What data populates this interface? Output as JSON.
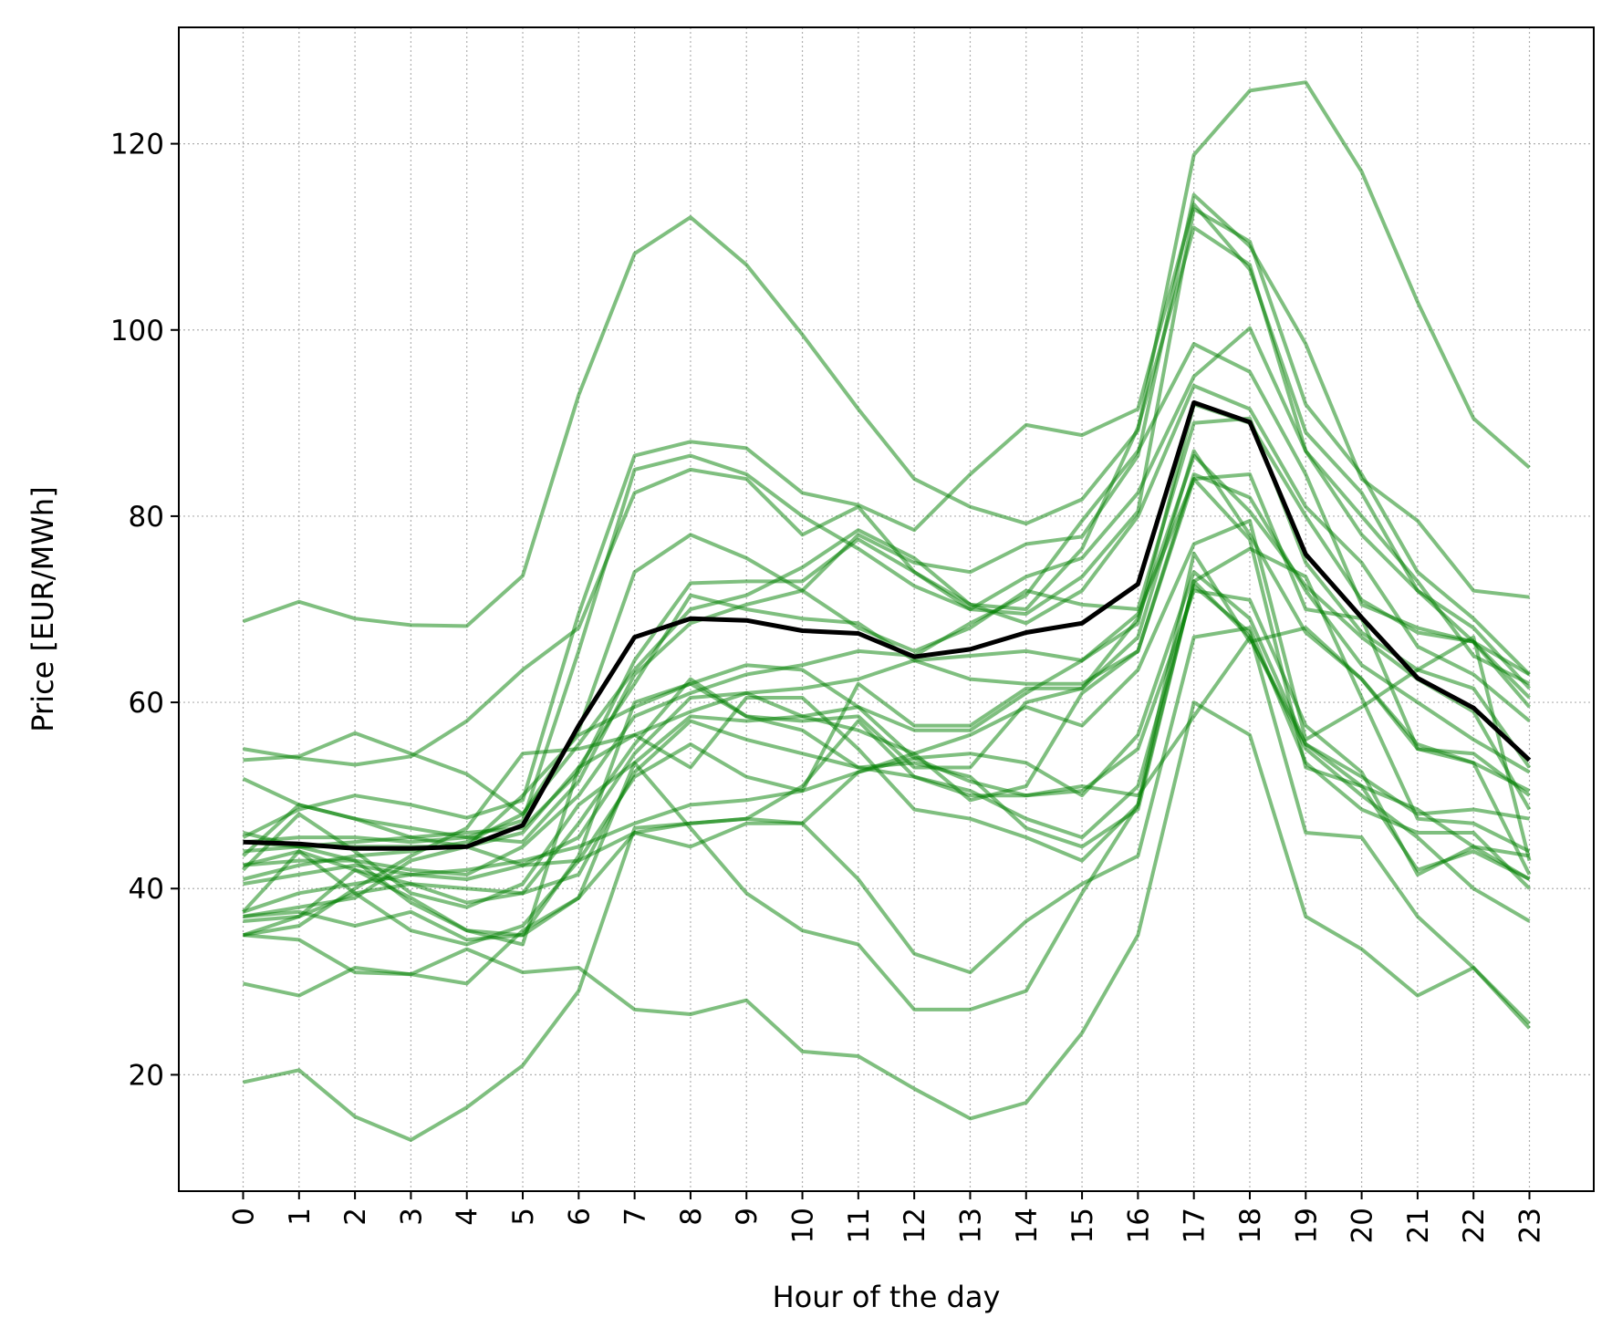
{
  "chart_data": {
    "type": "line",
    "title": "",
    "xlabel": "Hour of the day",
    "ylabel": "Price [EUR/MWh]",
    "x": [
      0,
      1,
      2,
      3,
      4,
      5,
      6,
      7,
      8,
      9,
      10,
      11,
      12,
      13,
      14,
      15,
      16,
      17,
      18,
      19,
      20,
      21,
      22,
      23
    ],
    "xlim": [
      -1.15,
      24.15
    ],
    "ylim": [
      7.5,
      132.5
    ],
    "yticks": [
      20,
      40,
      60,
      80,
      100,
      120
    ],
    "grid": true,
    "legend": false,
    "colors": {
      "series": "#008000",
      "mean": "#000000",
      "grid": "#b0b0b0"
    },
    "series": [
      {
        "values": [
          68.7,
          70.8,
          69.0,
          68.3,
          68.2,
          73.6,
          93.0,
          108.2,
          112.1,
          107.0,
          99.5,
          91.5,
          84.0,
          81.0,
          79.2,
          81.8,
          89.2,
          118.8,
          125.7,
          126.6,
          117.0,
          103.0,
          90.5,
          85.2
        ]
      },
      {
        "values": [
          45.5,
          48.5,
          50.0,
          49.0,
          47.6,
          49.5,
          69.5,
          86.5,
          88.0,
          87.3,
          82.5,
          81.2,
          78.5,
          84.5,
          89.8,
          88.7,
          91.5,
          113.5,
          106.5,
          89.0,
          82.5,
          72.0,
          66.5,
          60.5
        ]
      },
      {
        "values": [
          53.8,
          54.2,
          56.7,
          54.5,
          52.3,
          48.0,
          57.0,
          74.0,
          78.0,
          75.5,
          72.0,
          78.0,
          75.0,
          74.0,
          77.0,
          77.8,
          86.5,
          114.5,
          109.0,
          98.5,
          84.0,
          79.5,
          72.0,
          71.3
        ]
      },
      {
        "values": [
          51.8,
          49.0,
          47.5,
          46.5,
          45.5,
          47.3,
          65.5,
          85.0,
          86.5,
          84.5,
          80.0,
          76.5,
          72.5,
          70.0,
          69.5,
          73.5,
          80.5,
          113.0,
          109.5,
          92.0,
          84.5,
          74.0,
          69.0,
          63.0
        ]
      },
      {
        "values": [
          55.0,
          54.0,
          53.3,
          54.2,
          58.0,
          63.5,
          68.0,
          82.5,
          85.0,
          84.0,
          78.0,
          81.0,
          74.0,
          70.5,
          70.0,
          76.5,
          89.5,
          111.0,
          107.0,
          87.0,
          80.0,
          73.0,
          65.0,
          62.0
        ]
      },
      {
        "values": [
          42.5,
          43.0,
          43.0,
          42.0,
          41.5,
          44.5,
          50.0,
          58.5,
          61.0,
          63.0,
          64.0,
          65.5,
          65.0,
          68.5,
          71.5,
          79.5,
          87.0,
          98.5,
          95.5,
          84.5,
          70.5,
          68.0,
          66.5,
          63.0
        ]
      },
      {
        "values": [
          44.0,
          44.5,
          45.0,
          45.5,
          46.0,
          46.5,
          52.5,
          64.5,
          72.8,
          73.0,
          73.0,
          77.5,
          74.0,
          70.0,
          73.5,
          75.5,
          82.5,
          95.0,
          100.2,
          87.0,
          78.0,
          72.0,
          68.0,
          61.5
        ]
      },
      {
        "values": [
          41.0,
          42.5,
          43.5,
          44.0,
          45.0,
          48.0,
          55.5,
          63.5,
          70.0,
          71.5,
          74.5,
          78.5,
          75.5,
          70.5,
          68.5,
          72.0,
          80.0,
          94.0,
          91.5,
          81.0,
          75.0,
          66.0,
          63.0,
          58.0
        ]
      },
      {
        "values": [
          45.0,
          45.5,
          45.5,
          45.0,
          45.5,
          45.0,
          51.5,
          63.0,
          68.5,
          70.5,
          72.0,
          68.0,
          65.5,
          68.0,
          72.0,
          70.5,
          70.0,
          90.0,
          90.5,
          75.0,
          67.5,
          63.5,
          61.5,
          53.0
        ]
      },
      {
        "values": [
          45.0,
          44.5,
          44.5,
          44.5,
          44.5,
          46.0,
          53.0,
          62.0,
          71.5,
          70.0,
          69.0,
          68.5,
          64.5,
          65.0,
          65.5,
          64.5,
          68.5,
          92.0,
          90.0,
          80.0,
          71.0,
          67.5,
          66.5,
          59.5
        ]
      },
      {
        "values": [
          37.0,
          38.0,
          39.0,
          43.0,
          44.5,
          50.0,
          56.5,
          59.5,
          62.0,
          64.0,
          63.5,
          59.5,
          57.0,
          57.0,
          61.0,
          64.5,
          69.5,
          84.0,
          84.5,
          70.0,
          69.0,
          55.0,
          53.5,
          50.5
        ]
      },
      {
        "values": [
          35.0,
          36.0,
          40.0,
          43.5,
          46.5,
          54.5,
          55.0,
          56.5,
          59.0,
          61.0,
          61.5,
          62.5,
          64.5,
          62.5,
          62.0,
          62.0,
          65.5,
          84.5,
          82.0,
          72.0,
          64.0,
          60.0,
          56.0,
          52.5
        ]
      },
      {
        "values": [
          42.5,
          44.0,
          42.0,
          40.5,
          38.5,
          39.5,
          47.0,
          55.5,
          62.5,
          58.5,
          58.0,
          58.5,
          53.0,
          53.0,
          60.0,
          61.5,
          67.0,
          87.0,
          78.0,
          67.5,
          62.5,
          55.0,
          54.5,
          50.0
        ]
      },
      {
        "values": [
          37.5,
          39.5,
          40.5,
          41.5,
          42.0,
          43.0,
          44.5,
          47.0,
          49.0,
          49.5,
          50.5,
          62.0,
          57.5,
          57.5,
          61.5,
          61.5,
          69.0,
          86.5,
          80.5,
          72.5,
          67.0,
          62.5,
          59.0,
          48.5
        ]
      },
      {
        "values": [
          40.5,
          41.5,
          42.5,
          41.5,
          41.0,
          42.5,
          45.5,
          54.5,
          60.5,
          61.0,
          58.5,
          57.0,
          54.5,
          56.5,
          59.5,
          57.5,
          63.5,
          77.0,
          79.5,
          56.0,
          59.5,
          63.5,
          67.0,
          43.0
        ]
      },
      {
        "values": [
          43.5,
          49.0,
          47.5,
          45.5,
          44.5,
          42.5,
          43.0,
          46.0,
          47.0,
          47.5,
          47.0,
          52.5,
          54.0,
          54.5,
          53.5,
          50.0,
          56.5,
          74.0,
          69.0,
          55.5,
          52.0,
          48.0,
          48.5,
          47.5
        ]
      },
      {
        "values": [
          35.0,
          37.0,
          39.5,
          40.5,
          40.0,
          39.5,
          41.5,
          52.5,
          58.0,
          56.0,
          54.5,
          53.0,
          53.5,
          52.0,
          46.5,
          44.5,
          48.5,
          73.0,
          76.5,
          73.5,
          60.5,
          47.5,
          47.0,
          44.0
        ]
      },
      {
        "values": [
          37.5,
          44.0,
          39.5,
          35.5,
          34.0,
          36.0,
          43.0,
          52.0,
          55.5,
          52.0,
          50.5,
          52.5,
          54.5,
          49.5,
          51.0,
          61.0,
          65.5,
          84.0,
          77.5,
          53.0,
          51.0,
          48.5,
          44.5,
          41.0
        ]
      },
      {
        "values": [
          36.5,
          37.0,
          42.0,
          39.0,
          35.5,
          34.0,
          53.0,
          56.5,
          53.0,
          60.5,
          60.5,
          55.0,
          48.5,
          47.5,
          45.5,
          43.0,
          49.0,
          76.0,
          66.5,
          68.0,
          62.5,
          55.5,
          53.5,
          41.5
        ]
      },
      {
        "values": [
          46.0,
          44.5,
          43.0,
          38.5,
          35.5,
          35.0,
          43.5,
          60.0,
          62.0,
          58.5,
          57.0,
          53.0,
          52.0,
          50.5,
          47.5,
          45.5,
          51.0,
          72.5,
          67.5,
          46.0,
          45.5,
          37.0,
          31.5,
          25.5
        ]
      },
      {
        "values": [
          37.0,
          37.5,
          36.0,
          37.5,
          34.5,
          35.0,
          39.0,
          53.5,
          46.5,
          39.5,
          35.5,
          34.0,
          27.0,
          27.0,
          29.0,
          39.5,
          49.0,
          73.0,
          67.0,
          55.0,
          50.0,
          45.5,
          40.0,
          36.5
        ]
      },
      {
        "values": [
          35.0,
          34.5,
          31.0,
          30.8,
          29.8,
          35.5,
          39.0,
          46.0,
          44.5,
          47.0,
          47.0,
          41.0,
          33.0,
          31.0,
          36.5,
          40.5,
          43.5,
          67.0,
          68.0,
          53.5,
          48.5,
          46.0,
          46.0,
          40.0
        ]
      },
      {
        "values": [
          29.8,
          28.5,
          31.5,
          30.8,
          33.5,
          31.0,
          31.5,
          27.0,
          26.5,
          28.0,
          22.5,
          22.0,
          18.5,
          15.3,
          17.0,
          24.5,
          35.0,
          60.0,
          56.5,
          37.0,
          33.5,
          28.5,
          31.5,
          25.0
        ]
      },
      {
        "values": [
          19.2,
          20.5,
          15.5,
          13.0,
          16.5,
          21.0,
          29.0,
          46.5,
          47.0,
          47.5,
          51.0,
          58.0,
          52.0,
          50.0,
          50.0,
          51.0,
          50.0,
          58.5,
          67.0,
          55.5,
          51.0,
          42.0,
          44.0,
          41.0
        ]
      },
      {
        "values": [
          42.0,
          48.0,
          44.0,
          39.5,
          38.0,
          40.5,
          49.0,
          53.5,
          58.5,
          58.0,
          58.5,
          59.5,
          54.0,
          51.5,
          50.0,
          50.5,
          55.0,
          72.0,
          71.0,
          57.5,
          52.5,
          41.5,
          44.5,
          43.5
        ]
      }
    ],
    "mean": {
      "values": [
        45.0,
        44.8,
        44.3,
        44.3,
        44.5,
        46.8,
        57.5,
        67.0,
        69.0,
        68.8,
        67.7,
        67.4,
        64.9,
        65.7,
        67.5,
        68.5,
        72.7,
        92.2,
        90.1,
        75.9,
        69.1,
        62.6,
        59.4,
        53.8
      ]
    }
  }
}
